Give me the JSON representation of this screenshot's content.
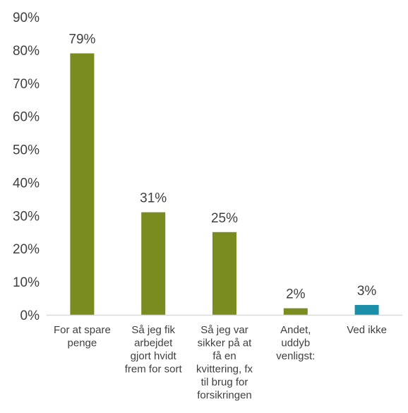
{
  "chart_data": {
    "type": "bar",
    "title": "",
    "xlabel": "",
    "ylabel": "",
    "ylim": [
      0,
      90
    ],
    "y_ticks": [
      "0%",
      "10%",
      "20%",
      "30%",
      "40%",
      "50%",
      "60%",
      "70%",
      "80%",
      "90%"
    ],
    "grid": false,
    "legend": "none",
    "categories": [
      [
        "For at spare",
        "penge"
      ],
      [
        "Så jeg fik",
        "arbejdet",
        "gjort hvidt",
        "frem for sort"
      ],
      [
        "Så jeg var",
        "sikker på at",
        "få en",
        "kvittering, fx",
        "til brug for",
        "forsikringen"
      ],
      [
        "Andet,",
        "uddyb",
        "venligst:"
      ],
      [
        "Ved ikke"
      ]
    ],
    "values": [
      79,
      31,
      25,
      2,
      3
    ],
    "data_labels": [
      "79%",
      "31%",
      "25%",
      "2%",
      "3%"
    ],
    "colors": [
      "#7a8c1f",
      "#7a8c1f",
      "#7a8c1f",
      "#7a8c1f",
      "#1a8ea8"
    ],
    "axis_color": "#d9d9d9"
  }
}
